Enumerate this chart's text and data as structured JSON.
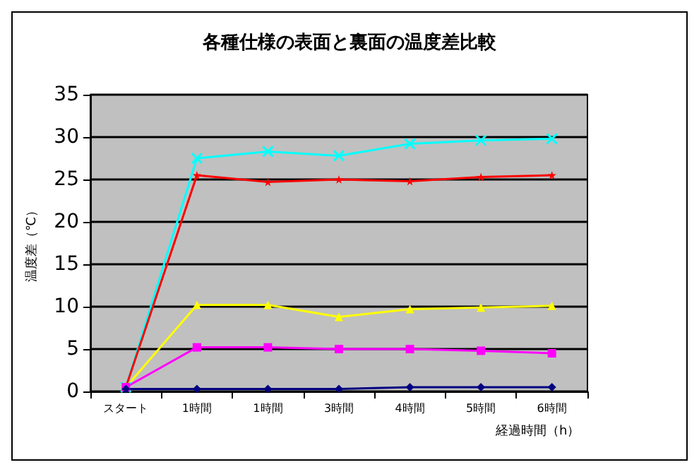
{
  "chart_data": {
    "type": "line",
    "title": "各種仕様の表面と裏面の温度差比較",
    "xlabel": "経過時間（h）",
    "ylabel": "温度差（℃）",
    "categories": [
      "スタート",
      "1時間",
      "1時間",
      "3時間",
      "4時間",
      "5時間",
      "6時間"
    ],
    "series": [
      {
        "color": "#00ffff",
        "marker": "cross",
        "values": [
          0.5,
          27.5,
          28.3,
          27.8,
          29.2,
          29.6,
          29.8
        ]
      },
      {
        "color": "#ff0000",
        "marker": "star",
        "values": [
          0.5,
          25.5,
          24.7,
          25.0,
          24.8,
          25.3,
          25.5
        ]
      },
      {
        "color": "#ffff00",
        "marker": "triangle",
        "values": [
          0.5,
          10.2,
          10.2,
          8.8,
          9.7,
          9.9,
          10.1
        ]
      },
      {
        "color": "#ff00ff",
        "marker": "square",
        "values": [
          0.5,
          5.2,
          5.2,
          5.0,
          5.0,
          4.8,
          4.5
        ]
      },
      {
        "color": "#000080",
        "marker": "diamond",
        "values": [
          0.3,
          0.3,
          0.3,
          0.3,
          0.5,
          0.5,
          0.5
        ]
      }
    ],
    "ylim": [
      0,
      35
    ],
    "yticks": [
      0,
      5,
      10,
      15,
      20,
      25,
      30,
      35
    ],
    "grid": "y"
  }
}
